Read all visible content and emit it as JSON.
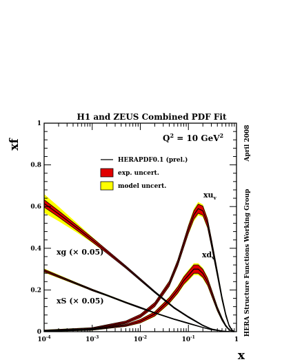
{
  "chart_data": {
    "type": "line",
    "title": "H1 and ZEUS Combined PDF Fit",
    "ylabel": "xf",
    "xlabel": "x",
    "xscale": "log",
    "xlim": [
      0.0001,
      1
    ],
    "ylim": [
      0,
      1
    ],
    "x_ticks": [
      {
        "value": 0.0001,
        "base": "10",
        "exp": "-4"
      },
      {
        "value": 0.001,
        "base": "10",
        "exp": "-3"
      },
      {
        "value": 0.01,
        "base": "10",
        "exp": "-2"
      },
      {
        "value": 0.1,
        "base": "10",
        "exp": "-1"
      },
      {
        "value": 1,
        "base": "1",
        "exp": ""
      }
    ],
    "y_ticks": [
      {
        "value": 0,
        "label": "0"
      },
      {
        "value": 0.2,
        "label": "0.2"
      },
      {
        "value": 0.4,
        "label": "0.4"
      },
      {
        "value": 0.6,
        "label": "0.6"
      },
      {
        "value": 0.8,
        "label": "0.8"
      },
      {
        "value": 1,
        "label": "1"
      }
    ],
    "annotations": {
      "q2_prefix": "Q",
      "q2_sup": "2",
      "q2_suffix": " = 10 GeV",
      "q2_sup2": "2",
      "side_top": "April 2008",
      "side_bottom": "HERA Structure Functions Working Group"
    },
    "legend": {
      "placement": "top-center",
      "entries": [
        {
          "label": "HERAPDF0.1 (prel.)",
          "kind": "line",
          "color": "#000000"
        },
        {
          "label": "exp. uncert.",
          "kind": "box",
          "color": "#e00000"
        },
        {
          "label": "model uncert.",
          "kind": "box",
          "color": "#ffff00"
        }
      ]
    },
    "colors": {
      "central": "#000000",
      "exp": "#e00000",
      "model": "#ffff00"
    },
    "series": [
      {
        "name": "xu_v",
        "label_main": "xu",
        "label_sub": "v",
        "x": [
          0.0001,
          0.001,
          0.005,
          0.01,
          0.02,
          0.04,
          0.06,
          0.08,
          0.1,
          0.13,
          0.16,
          0.2,
          0.25,
          0.3,
          0.4,
          0.5,
          0.6,
          0.7,
          0.8,
          0.9
        ],
        "y": [
          0.005,
          0.015,
          0.045,
          0.075,
          0.13,
          0.23,
          0.33,
          0.42,
          0.49,
          0.56,
          0.59,
          0.58,
          0.52,
          0.43,
          0.28,
          0.16,
          0.08,
          0.03,
          0.008,
          0.001
        ],
        "exp_band": [
          0.003,
          0.004,
          0.006,
          0.008,
          0.01,
          0.012,
          0.014,
          0.016,
          0.018,
          0.02,
          0.022,
          0.022,
          0.02,
          0.018,
          0.014,
          0.01,
          0.007,
          0.004,
          0.002,
          0.001
        ],
        "model_band": [
          0.004,
          0.005,
          0.007,
          0.009,
          0.012,
          0.015,
          0.018,
          0.02,
          0.024,
          0.03,
          0.032,
          0.03,
          0.026,
          0.022,
          0.018,
          0.013,
          0.009,
          0.005,
          0.003,
          0.001
        ]
      },
      {
        "name": "xd_v",
        "label_main": "xd",
        "label_sub": "v",
        "x": [
          0.0001,
          0.001,
          0.005,
          0.01,
          0.02,
          0.04,
          0.06,
          0.08,
          0.1,
          0.13,
          0.16,
          0.2,
          0.25,
          0.3,
          0.4,
          0.5,
          0.6,
          0.7,
          0.8,
          0.9
        ],
        "y": [
          0.003,
          0.01,
          0.03,
          0.05,
          0.085,
          0.15,
          0.2,
          0.245,
          0.27,
          0.3,
          0.3,
          0.28,
          0.24,
          0.19,
          0.11,
          0.06,
          0.028,
          0.01,
          0.003,
          0.0005
        ],
        "exp_band": [
          0.002,
          0.003,
          0.005,
          0.008,
          0.01,
          0.013,
          0.015,
          0.017,
          0.019,
          0.02,
          0.02,
          0.019,
          0.017,
          0.015,
          0.01,
          0.007,
          0.004,
          0.002,
          0.001,
          0.0005
        ],
        "model_band": [
          0.003,
          0.004,
          0.006,
          0.01,
          0.013,
          0.017,
          0.02,
          0.023,
          0.026,
          0.028,
          0.028,
          0.026,
          0.023,
          0.02,
          0.014,
          0.009,
          0.005,
          0.003,
          0.001,
          0.0005
        ]
      },
      {
        "name": "xg (× 0.05)",
        "label_main": "xg (× 0.05)",
        "label_sub": "",
        "x": [
          0.0001,
          0.0002,
          0.0005,
          0.001,
          0.002,
          0.005,
          0.01,
          0.02,
          0.05,
          0.1,
          0.2,
          0.3,
          0.5,
          0.7,
          0.9
        ],
        "y": [
          0.615,
          0.565,
          0.495,
          0.44,
          0.385,
          0.31,
          0.25,
          0.19,
          0.115,
          0.07,
          0.03,
          0.013,
          0.003,
          0.0005,
          0.0
        ],
        "exp_band": [
          0.018,
          0.015,
          0.012,
          0.01,
          0.008,
          0.006,
          0.005,
          0.004,
          0.003,
          0.003,
          0.002,
          0.001,
          0.001,
          0.0,
          0.0
        ],
        "model_band": [
          0.045,
          0.035,
          0.022,
          0.014,
          0.009,
          0.006,
          0.005,
          0.004,
          0.003,
          0.003,
          0.002,
          0.001,
          0.001,
          0.0,
          0.0
        ]
      },
      {
        "name": "xS (× 0.05)",
        "label_main": "xS (× 0.05)",
        "label_sub": "",
        "x": [
          0.0001,
          0.0002,
          0.0005,
          0.001,
          0.002,
          0.005,
          0.01,
          0.02,
          0.05,
          0.1,
          0.2,
          0.3,
          0.5,
          0.7,
          0.9
        ],
        "y": [
          0.293,
          0.265,
          0.228,
          0.2,
          0.175,
          0.14,
          0.115,
          0.09,
          0.06,
          0.04,
          0.02,
          0.01,
          0.003,
          0.0005,
          0.0
        ],
        "exp_band": [
          0.006,
          0.005,
          0.004,
          0.004,
          0.003,
          0.003,
          0.003,
          0.002,
          0.002,
          0.002,
          0.001,
          0.001,
          0.0005,
          0.0,
          0.0
        ],
        "model_band": [
          0.01,
          0.008,
          0.006,
          0.005,
          0.004,
          0.004,
          0.003,
          0.003,
          0.002,
          0.002,
          0.001,
          0.001,
          0.0005,
          0.0,
          0.0
        ]
      }
    ]
  }
}
